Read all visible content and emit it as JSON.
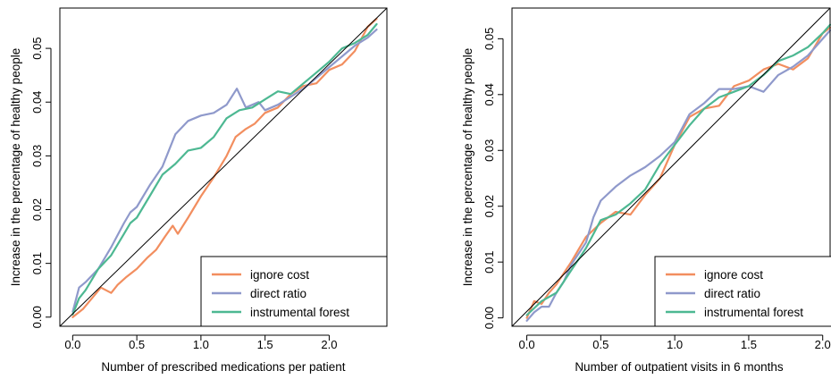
{
  "chart_data": [
    {
      "type": "line",
      "xlabel": "Number of prescribed medications per patient",
      "ylabel": "Increase in the percentage of healthy people",
      "xlim": [
        -0.1,
        2.45
      ],
      "ylim": [
        -0.0017,
        0.0575
      ],
      "x_ticks": [
        0.0,
        0.5,
        1.0,
        1.5,
        2.0
      ],
      "x_tick_labels": [
        "0.0",
        "0.5",
        "1.0",
        "1.5",
        "2.0"
      ],
      "y_ticks": [
        0.0,
        0.01,
        0.02,
        0.03,
        0.04,
        0.05
      ],
      "y_tick_labels": [
        "0.00",
        "0.01",
        "0.02",
        "0.03",
        "0.04",
        "0.05"
      ],
      "grid": false,
      "legend_position": "bottom-right",
      "reference_line": [
        [
          -0.1,
          -0.0017
        ],
        [
          2.45,
          0.0575
        ]
      ],
      "series": [
        {
          "name": "ignore cost",
          "color": "#F28E5F",
          "x": [
            0.0,
            0.08,
            0.15,
            0.22,
            0.3,
            0.35,
            0.42,
            0.5,
            0.58,
            0.65,
            0.72,
            0.78,
            0.82,
            0.9,
            1.0,
            1.1,
            1.2,
            1.27,
            1.35,
            1.42,
            1.5,
            1.6,
            1.7,
            1.8,
            1.9,
            2.0,
            2.1,
            2.2,
            2.3,
            2.37
          ],
          "y": [
            0.0,
            0.0015,
            0.0035,
            0.0055,
            0.0045,
            0.006,
            0.0075,
            0.009,
            0.011,
            0.0125,
            0.015,
            0.017,
            0.0155,
            0.0185,
            0.0225,
            0.026,
            0.03,
            0.0335,
            0.035,
            0.036,
            0.038,
            0.039,
            0.0415,
            0.043,
            0.0435,
            0.046,
            0.047,
            0.0495,
            0.054,
            0.0555
          ]
        },
        {
          "name": "direct ratio",
          "color": "#8F99CB",
          "x": [
            0.0,
            0.05,
            0.1,
            0.2,
            0.3,
            0.4,
            0.45,
            0.5,
            0.6,
            0.7,
            0.8,
            0.9,
            1.0,
            1.1,
            1.2,
            1.28,
            1.35,
            1.45,
            1.5,
            1.6,
            1.7,
            1.8,
            1.9,
            2.0,
            2.1,
            2.2,
            2.3,
            2.37
          ],
          "y": [
            0.001,
            0.0055,
            0.0065,
            0.009,
            0.013,
            0.0175,
            0.0195,
            0.0205,
            0.0245,
            0.028,
            0.034,
            0.0365,
            0.0375,
            0.038,
            0.0395,
            0.0425,
            0.039,
            0.04,
            0.0385,
            0.0395,
            0.041,
            0.0425,
            0.0445,
            0.0465,
            0.0485,
            0.0505,
            0.052,
            0.0535
          ]
        },
        {
          "name": "instrumental forest",
          "color": "#4DB892",
          "x": [
            0.0,
            0.05,
            0.1,
            0.2,
            0.3,
            0.4,
            0.45,
            0.5,
            0.6,
            0.7,
            0.8,
            0.9,
            1.0,
            1.1,
            1.2,
            1.3,
            1.4,
            1.5,
            1.6,
            1.7,
            1.8,
            1.9,
            2.0,
            2.1,
            2.2,
            2.3,
            2.37
          ],
          "y": [
            0.0005,
            0.0035,
            0.005,
            0.009,
            0.0115,
            0.0155,
            0.0175,
            0.0185,
            0.0225,
            0.0265,
            0.0285,
            0.031,
            0.0315,
            0.0335,
            0.037,
            0.0385,
            0.039,
            0.0405,
            0.042,
            0.0415,
            0.0435,
            0.0455,
            0.0475,
            0.05,
            0.051,
            0.0525,
            0.0545
          ]
        }
      ]
    },
    {
      "type": "line",
      "xlabel": "Number of outpatient visits in 6 months",
      "ylabel": "Increase in the percentage of healthy people",
      "xlim": [
        -0.1,
        2.05
      ],
      "ylim": [
        -0.0015,
        0.0555
      ],
      "x_ticks": [
        0.0,
        0.5,
        1.0,
        1.5,
        2.0
      ],
      "x_tick_labels": [
        "0.0",
        "0.5",
        "1.0",
        "1.5",
        "2.0"
      ],
      "y_ticks": [
        0.0,
        0.01,
        0.02,
        0.03,
        0.04,
        0.05
      ],
      "y_tick_labels": [
        "0.00",
        "0.01",
        "0.02",
        "0.03",
        "0.04",
        "0.05"
      ],
      "grid": false,
      "legend_position": "bottom-right",
      "reference_line": [
        [
          -0.1,
          -0.0015
        ],
        [
          2.05,
          0.0555
        ]
      ],
      "series": [
        {
          "name": "ignore cost",
          "color": "#F28E5F",
          "x": [
            0.0,
            0.05,
            0.1,
            0.15,
            0.2,
            0.3,
            0.4,
            0.5,
            0.6,
            0.7,
            0.8,
            0.9,
            1.0,
            1.1,
            1.2,
            1.3,
            1.4,
            1.5,
            1.6,
            1.7,
            1.8,
            1.9,
            2.0,
            2.05
          ],
          "y": [
            0.0,
            0.003,
            0.0025,
            0.0045,
            0.006,
            0.01,
            0.0145,
            0.017,
            0.019,
            0.0185,
            0.022,
            0.025,
            0.031,
            0.036,
            0.0375,
            0.038,
            0.0415,
            0.0425,
            0.0445,
            0.0455,
            0.0445,
            0.0465,
            0.051,
            0.052
          ]
        },
        {
          "name": "direct ratio",
          "color": "#8F99CB",
          "x": [
            0.0,
            0.05,
            0.1,
            0.15,
            0.2,
            0.25,
            0.3,
            0.4,
            0.45,
            0.5,
            0.6,
            0.7,
            0.8,
            0.9,
            1.0,
            1.1,
            1.2,
            1.3,
            1.4,
            1.5,
            1.6,
            1.7,
            1.8,
            1.9,
            2.0,
            2.05
          ],
          "y": [
            -0.0005,
            0.001,
            0.002,
            0.002,
            0.0045,
            0.0065,
            0.0095,
            0.0135,
            0.018,
            0.021,
            0.0235,
            0.0255,
            0.027,
            0.029,
            0.0315,
            0.0365,
            0.0385,
            0.041,
            0.041,
            0.0415,
            0.0405,
            0.0435,
            0.045,
            0.047,
            0.05,
            0.0515
          ]
        },
        {
          "name": "instrumental forest",
          "color": "#4DB892",
          "x": [
            0.0,
            0.1,
            0.2,
            0.3,
            0.4,
            0.5,
            0.6,
            0.7,
            0.8,
            0.9,
            1.0,
            1.1,
            1.2,
            1.3,
            1.4,
            1.5,
            1.6,
            1.7,
            1.8,
            1.9,
            2.0,
            2.05
          ],
          "y": [
            0.0005,
            0.003,
            0.0045,
            0.0085,
            0.0125,
            0.0175,
            0.0185,
            0.0205,
            0.023,
            0.0275,
            0.031,
            0.0345,
            0.0375,
            0.0395,
            0.0405,
            0.0415,
            0.0435,
            0.046,
            0.047,
            0.0485,
            0.051,
            0.0525
          ]
        }
      ]
    }
  ]
}
